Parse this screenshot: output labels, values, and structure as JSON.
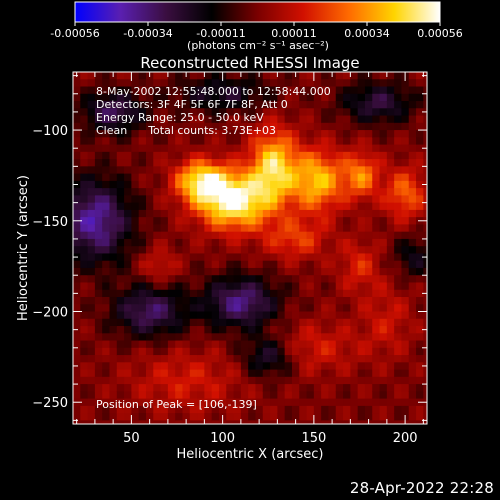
{
  "chart_data": {
    "type": "heatmap",
    "title": "Reconstructed RHESSI Image",
    "xlabel": "Heliocentric X (arcsec)",
    "ylabel": "Heliocentric Y (arcsec)",
    "xlim": [
      18,
      212
    ],
    "ylim": [
      -262,
      -68
    ],
    "x_ticks": [
      50,
      100,
      150,
      200
    ],
    "y_ticks": [
      -100,
      -150,
      -200,
      -250
    ],
    "colorbar": {
      "ticks": [
        "-0.00056",
        "-0.00034",
        "-0.00011",
        "0.00011",
        "0.00034",
        "0.00056"
      ],
      "range": [
        -0.00056,
        0.00056
      ],
      "units": "(photons cm⁻² s⁻¹ asec⁻²)",
      "colors": [
        "#0000ff",
        "#5a1fb0",
        "#3a0e40",
        "#000000",
        "#7a0000",
        "#d11000",
        "#ff6a00",
        "#ffd400",
        "#ffffff"
      ]
    },
    "annotations": {
      "time": "8-May-2002 12:55:48.000 to 12:58:44.000",
      "detectors": "Detectors: 3F 4F 5F 6F 7F 8F, Att 0",
      "energy": "Energy Range: 25.0 - 50.0 keV",
      "clean": "Clean      Total counts: 3.73E+03",
      "peak": "Position of Peak = [106,-139]"
    },
    "peak": {
      "x": 106,
      "y": -139,
      "value": 0.00056
    },
    "sources": [
      {
        "x": 106,
        "y": -139,
        "sx": 14,
        "sy": 11,
        "amp": 0.00056
      },
      {
        "x": 88,
        "y": -128,
        "sx": 10,
        "sy": 8,
        "amp": 0.00042
      },
      {
        "x": 128,
        "y": -120,
        "sx": 9,
        "sy": 14,
        "amp": 0.00044
      },
      {
        "x": 152,
        "y": -128,
        "sx": 10,
        "sy": 12,
        "amp": 0.0004
      },
      {
        "x": 176,
        "y": -125,
        "sx": 7,
        "sy": 9,
        "amp": 0.0003
      },
      {
        "x": 200,
        "y": -135,
        "sx": 8,
        "sy": 10,
        "amp": 0.00026
      },
      {
        "x": 140,
        "y": -160,
        "sx": 12,
        "sy": 8,
        "amp": 0.0002
      },
      {
        "x": 175,
        "y": -175,
        "sx": 8,
        "sy": 10,
        "amp": 0.00016
      },
      {
        "x": 65,
        "y": -175,
        "sx": 7,
        "sy": 7,
        "amp": 0.00014
      },
      {
        "x": 150,
        "y": -220,
        "sx": 18,
        "sy": 10,
        "amp": 0.00014
      },
      {
        "x": 80,
        "y": -238,
        "sx": 22,
        "sy": 12,
        "amp": 0.00014
      },
      {
        "x": 190,
        "y": -205,
        "sx": 10,
        "sy": 14,
        "amp": 0.00012
      },
      {
        "x": 40,
        "y": -90,
        "sx": 12,
        "sy": 8,
        "amp": -0.0003
      },
      {
        "x": 30,
        "y": -150,
        "sx": 14,
        "sy": 16,
        "amp": -0.0004
      },
      {
        "x": 60,
        "y": -200,
        "sx": 14,
        "sy": 10,
        "amp": -0.00032
      },
      {
        "x": 110,
        "y": -195,
        "sx": 14,
        "sy": 10,
        "amp": -0.00036
      },
      {
        "x": 125,
        "y": -225,
        "sx": 10,
        "sy": 8,
        "amp": -0.00026
      },
      {
        "x": 185,
        "y": -85,
        "sx": 14,
        "sy": 8,
        "amp": -0.00026
      },
      {
        "x": 205,
        "y": -170,
        "sx": 8,
        "sy": 8,
        "amp": -0.00018
      },
      {
        "x": 100,
        "y": -80,
        "sx": 18,
        "sy": 7,
        "amp": -0.00022
      }
    ]
  },
  "footer": {
    "datestamp": "28-Apr-2022 22:28"
  }
}
